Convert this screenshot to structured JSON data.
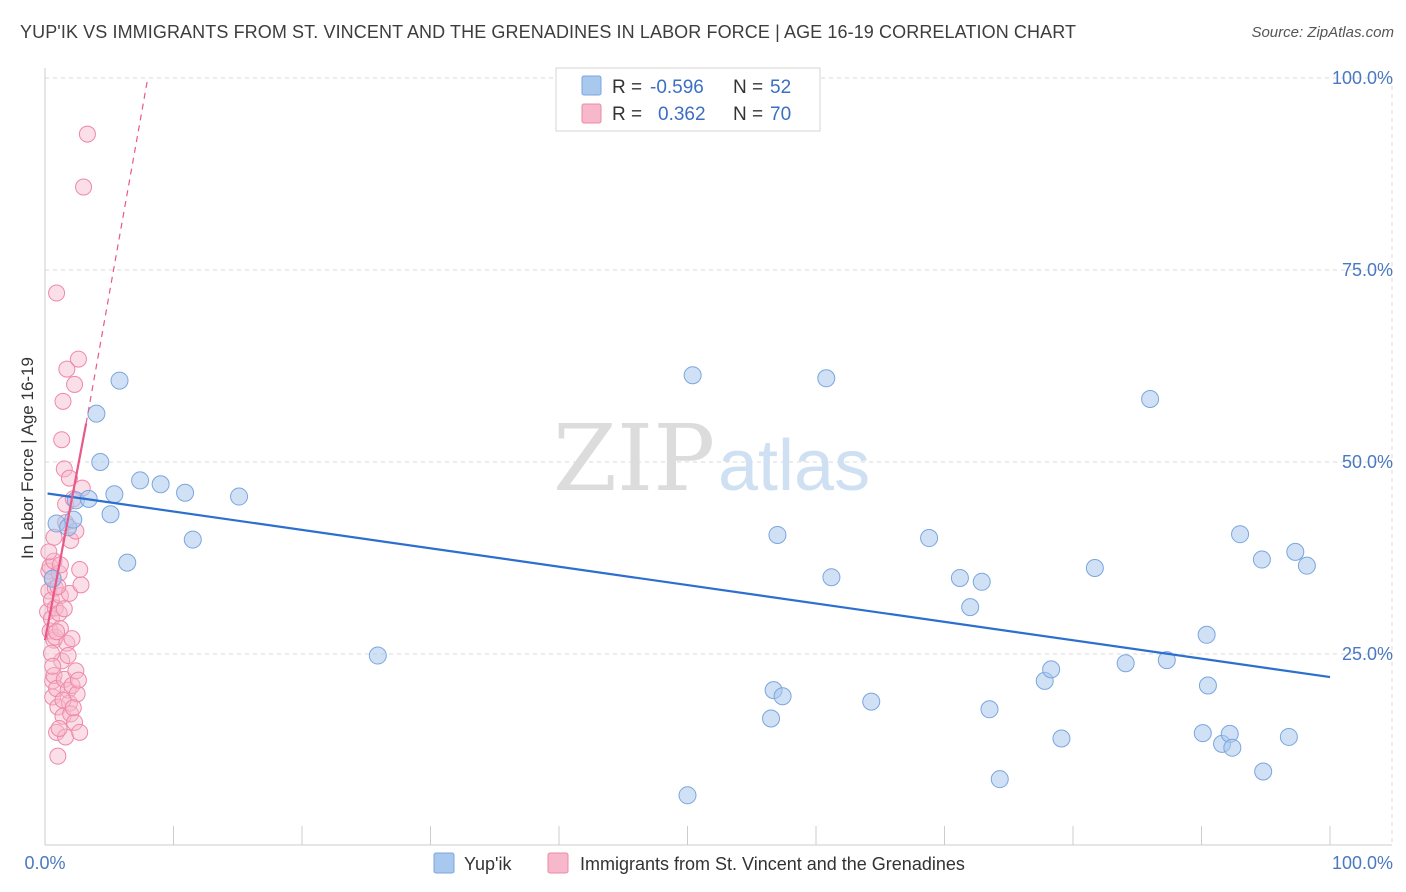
{
  "header": {
    "title": "YUP'IK VS IMMIGRANTS FROM ST. VINCENT AND THE GRENADINES IN LABOR FORCE | AGE 16-19 CORRELATION CHART",
    "source": "Source: ZipAtlas.com"
  },
  "watermark": {
    "zip": "ZIP",
    "atlas": "atlas"
  },
  "colors": {
    "blue_fill": "#a9c8ee",
    "blue_stroke": "#7aa6de",
    "blue_line": "#2b6fcf",
    "pink_fill": "#f7b8cb",
    "pink_stroke": "#ee88a8",
    "pink_line": "#e8588a",
    "grid": "#d9d9d9",
    "tick_text": "#4a78c2"
  },
  "legend": {
    "rows": [
      {
        "r_label": "R =",
        "r_value": "-0.596",
        "n_label": "N =",
        "n_value": "52"
      },
      {
        "r_label": "R =",
        "r_value": "0.362",
        "n_label": "N =",
        "n_value": "70"
      }
    ]
  },
  "chart_data": {
    "type": "scatter",
    "title": "YUP'IK VS IMMIGRANTS FROM ST. VINCENT AND THE GRENADINES IN LABOR FORCE | AGE 16-19 CORRELATION CHART",
    "xlabel": "",
    "ylabel": "In Labor Force | Age 16-19",
    "xlim": [
      0,
      100
    ],
    "ylim": [
      0,
      100
    ],
    "x_ticks": [
      "0.0%",
      "100.0%"
    ],
    "y_ticks": [
      {
        "value": 100,
        "label": "100.0%"
      },
      {
        "value": 75,
        "label": "75.0%"
      },
      {
        "value": 50,
        "label": "50.0%"
      },
      {
        "value": 25,
        "label": "25.0%"
      }
    ],
    "legend_position": "top-center",
    "series": [
      {
        "name": "Yup'ik",
        "color": "#a9c8ee",
        "points": [
          [
            0.6,
            34.8
          ],
          [
            0.9,
            42
          ],
          [
            1.8,
            41.5
          ],
          [
            2.2,
            42.5
          ],
          [
            2.4,
            45
          ],
          [
            3.4,
            45.2
          ],
          [
            4.0,
            56.3
          ],
          [
            4.3,
            50.0
          ],
          [
            5.1,
            43.2
          ],
          [
            5.4,
            45.8
          ],
          [
            5.8,
            60.6
          ],
          [
            6.4,
            36.9
          ],
          [
            7.4,
            47.6
          ],
          [
            9.0,
            47.1
          ],
          [
            10.9,
            46.0
          ],
          [
            11.5,
            39.9
          ],
          [
            15.1,
            45.5
          ],
          [
            25.9,
            24.8
          ],
          [
            50.0,
            6.6
          ],
          [
            50.4,
            61.3
          ],
          [
            56.5,
            16.6
          ],
          [
            56.7,
            20.3
          ],
          [
            57.0,
            40.5
          ],
          [
            57.4,
            19.5
          ],
          [
            60.8,
            60.9
          ],
          [
            61.2,
            35.0
          ],
          [
            64.3,
            18.8
          ],
          [
            68.8,
            40.1
          ],
          [
            71.2,
            34.9
          ],
          [
            72.0,
            31.1
          ],
          [
            72.9,
            34.4
          ],
          [
            73.5,
            17.8
          ],
          [
            74.3,
            8.7
          ],
          [
            77.8,
            21.5
          ],
          [
            78.3,
            23.0
          ],
          [
            79.1,
            14.0
          ],
          [
            81.7,
            36.2
          ],
          [
            84.1,
            23.8
          ],
          [
            86.0,
            58.2
          ],
          [
            87.3,
            24.2
          ],
          [
            90.1,
            14.7
          ],
          [
            90.4,
            27.5
          ],
          [
            90.5,
            20.9
          ],
          [
            91.6,
            13.3
          ],
          [
            92.2,
            14.6
          ],
          [
            92.4,
            12.8
          ],
          [
            93.0,
            40.6
          ],
          [
            94.7,
            37.3
          ],
          [
            94.8,
            9.7
          ],
          [
            96.8,
            14.2
          ],
          [
            97.3,
            38.3
          ],
          [
            98.2,
            36.5
          ]
        ],
        "trend": {
          "x1": 0.2,
          "y1": 45.9,
          "x2": 100.0,
          "y2": 22.0
        }
      },
      {
        "name": "Immigrants from St. Vincent and the Grenadines",
        "color": "#f7b8cb",
        "points": [
          [
            0.2,
            30.5
          ],
          [
            0.3,
            35.8
          ],
          [
            0.3,
            33.2
          ],
          [
            0.4,
            28.0
          ],
          [
            0.4,
            36.4
          ],
          [
            0.5,
            32.0
          ],
          [
            0.5,
            29.6
          ],
          [
            0.6,
            21.5
          ],
          [
            0.6,
            34.9
          ],
          [
            0.6,
            19.4
          ],
          [
            0.7,
            26.8
          ],
          [
            0.7,
            37.1
          ],
          [
            0.7,
            22.2
          ],
          [
            0.8,
            33.6
          ],
          [
            0.8,
            31.0
          ],
          [
            0.8,
            27.2
          ],
          [
            0.9,
            72.0
          ],
          [
            0.9,
            20.5
          ],
          [
            0.9,
            14.8
          ],
          [
            1.0,
            18.1
          ],
          [
            1.0,
            11.7
          ],
          [
            1.1,
            35.5
          ],
          [
            1.1,
            30.3
          ],
          [
            1.2,
            32.6
          ],
          [
            1.2,
            28.3
          ],
          [
            1.3,
            24.1
          ],
          [
            1.3,
            52.9
          ],
          [
            1.4,
            16.9
          ],
          [
            1.4,
            57.9
          ],
          [
            1.5,
            49.1
          ],
          [
            1.5,
            21.7
          ],
          [
            1.6,
            14.2
          ],
          [
            1.6,
            44.5
          ],
          [
            1.7,
            62.1
          ],
          [
            1.7,
            26.4
          ],
          [
            1.8,
            20.3
          ],
          [
            1.9,
            18.6
          ],
          [
            1.9,
            32.9
          ],
          [
            2.0,
            17.2
          ],
          [
            2.0,
            39.8
          ],
          [
            2.1,
            20.9
          ],
          [
            2.2,
            45.2
          ],
          [
            2.3,
            60.1
          ],
          [
            2.3,
            16.1
          ],
          [
            2.4,
            22.8
          ],
          [
            2.5,
            19.8
          ],
          [
            2.6,
            63.4
          ],
          [
            2.7,
            14.8
          ],
          [
            2.8,
            34.0
          ],
          [
            2.9,
            46.6
          ],
          [
            3.0,
            85.8
          ],
          [
            3.3,
            92.7
          ],
          [
            0.3,
            38.3
          ],
          [
            0.5,
            25.1
          ],
          [
            0.6,
            23.4
          ],
          [
            0.7,
            40.2
          ],
          [
            0.9,
            27.9
          ],
          [
            1.0,
            33.8
          ],
          [
            1.1,
            15.3
          ],
          [
            1.2,
            36.6
          ],
          [
            1.4,
            19.0
          ],
          [
            1.5,
            30.9
          ],
          [
            1.6,
            42.1
          ],
          [
            1.8,
            24.8
          ],
          [
            1.9,
            47.9
          ],
          [
            2.1,
            27.0
          ],
          [
            2.2,
            18.0
          ],
          [
            2.4,
            41.0
          ],
          [
            2.6,
            21.6
          ],
          [
            2.7,
            36.0
          ]
        ],
        "trend": {
          "x1": 0.0,
          "y1": 26.8,
          "x2": 3.2,
          "y2": 55.0
        },
        "trend_extension": {
          "x1": 3.2,
          "y1": 55.0,
          "x2": 8.0,
          "y2": 100.0
        }
      }
    ]
  },
  "bottom_legend": {
    "items": [
      {
        "label": "Yup'ik"
      },
      {
        "label": "Immigrants from St. Vincent and the Grenadines"
      }
    ]
  }
}
